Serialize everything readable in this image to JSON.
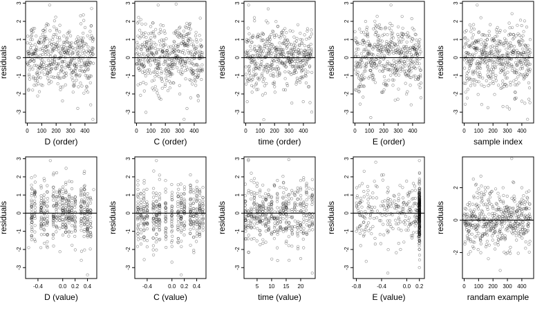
{
  "chart_data": [
    {
      "type": "scatter",
      "xlabel": "D (order)",
      "ylabel": "residuals",
      "xlim": [
        -12,
        482
      ],
      "ylim": [
        -3.6,
        3.1
      ],
      "xticks": [
        0,
        100,
        200,
        300,
        400
      ],
      "yticks": [
        -3,
        -2,
        -1,
        0,
        1,
        2,
        3
      ],
      "hline": 0,
      "x_kind": "index",
      "cluster_pattern": "segments",
      "series": [
        {
          "name": "",
          "n": 460,
          "x": [
            8,
            40,
            120,
            155,
            185,
            250,
            300,
            340,
            380,
            420,
            440,
            455
          ],
          "y": [
            -1.8,
            1.6,
            -0.6,
            2.9,
            1.7,
            -0.8,
            1.2,
            -1.0,
            0.9,
            -1.9,
            -2.6,
            -3.4
          ]
        }
      ]
    },
    {
      "type": "scatter",
      "xlabel": "C (order)",
      "ylabel": "residuals",
      "xlim": [
        -12,
        482
      ],
      "ylim": [
        -3.6,
        3.1
      ],
      "xticks": [
        0,
        100,
        200,
        300,
        400
      ],
      "yticks": [
        -3,
        -2,
        -1,
        0,
        1,
        2,
        3
      ],
      "hline": 0,
      "x_kind": "index",
      "cluster_pattern": "segments",
      "series": [
        {
          "name": "",
          "n": 460,
          "x": [
            10,
            30,
            100,
            150,
            200,
            260,
            300,
            330,
            350,
            410,
            450
          ],
          "y": [
            -1.5,
            2.1,
            1.1,
            2.9,
            -0.7,
            0.9,
            -2.0,
            -3.4,
            -2.8,
            1.2,
            0.6
          ],
          "wavy": true
        }
      ]
    },
    {
      "type": "scatter",
      "xlabel": "time (order)",
      "ylabel": "residuals",
      "xlim": [
        -12,
        482
      ],
      "ylim": [
        -3.6,
        3.1
      ],
      "xticks": [
        0,
        100,
        200,
        300,
        400
      ],
      "yticks": [
        -3,
        -2,
        -1,
        0,
        1,
        2,
        3
      ],
      "hline": 0,
      "x_kind": "index",
      "cluster_pattern": "uniform",
      "series": [
        {
          "name": "",
          "n": 460,
          "x": [
            20,
            60,
            120,
            200,
            260,
            320,
            380,
            440,
            458
          ],
          "y": [
            2.9,
            2.2,
            1.3,
            -1.6,
            1.5,
            -2.5,
            1.0,
            -1.6,
            -3.0
          ]
        }
      ]
    },
    {
      "type": "scatter",
      "xlabel": "E (order)",
      "ylabel": "residuals",
      "xlim": [
        -12,
        482
      ],
      "ylim": [
        -3.6,
        3.1
      ],
      "xticks": [
        0,
        100,
        200,
        300,
        400
      ],
      "yticks": [
        -3,
        -2,
        -1,
        0,
        1,
        2,
        3
      ],
      "hline": 0,
      "x_kind": "index",
      "cluster_pattern": "segments",
      "series": [
        {
          "name": "",
          "n": 460,
          "x": [
            10,
            60,
            110,
            160,
            210,
            250,
            300,
            350,
            390,
            420,
            450
          ],
          "y": [
            -1.8,
            1.4,
            -3.3,
            0.9,
            1.6,
            2.9,
            1.7,
            -0.9,
            -2.6,
            -1.2,
            1.0
          ]
        }
      ]
    },
    {
      "type": "scatter",
      "xlabel": "sample index",
      "ylabel": "residuals",
      "xlim": [
        -12,
        482
      ],
      "ylim": [
        -3.6,
        3.1
      ],
      "xticks": [
        0,
        100,
        200,
        300,
        400
      ],
      "yticks": [
        -3,
        -2,
        -1,
        0,
        1,
        2,
        3
      ],
      "hline": 0,
      "x_kind": "index",
      "cluster_pattern": "segments",
      "series": [
        {
          "name": "",
          "n": 460,
          "x": [
            10,
            40,
            90,
            120,
            160,
            200,
            250,
            300,
            360,
            400,
            440,
            458
          ],
          "y": [
            -1.9,
            1.8,
            2.9,
            -1.5,
            1.0,
            -0.8,
            1.5,
            0.8,
            1.2,
            -2.4,
            -3.4,
            1.0
          ]
        }
      ]
    },
    {
      "type": "scatter",
      "xlabel": "D (value)",
      "ylabel": "residuals",
      "xlim": [
        -0.6,
        0.55
      ],
      "ylim": [
        -3.6,
        3.1
      ],
      "xticks": [
        -0.4,
        0.0,
        0.2,
        0.4
      ],
      "xtick_labels": [
        "-0.4",
        "0.0",
        "0.2",
        "0.4"
      ],
      "yticks": [
        -3,
        -2,
        -1,
        0,
        1,
        2,
        3
      ],
      "hline": 0,
      "x_kind": "value",
      "cluster_pattern": "stripes",
      "stripe_x": [
        -0.5,
        -0.45,
        -0.35,
        -0.3,
        -0.25,
        -0.15,
        -0.1,
        -0.05,
        0.0,
        0.05,
        0.1,
        0.15,
        0.2,
        0.3,
        0.35,
        0.4,
        0.45
      ],
      "series": [
        {
          "name": "",
          "n": 460,
          "x": [
            -0.55,
            -0.35,
            -0.2,
            0.05,
            0.1,
            0.3,
            0.4,
            0.5
          ],
          "y": [
            -1.9,
            1.5,
            2.9,
            1.7,
            -1.0,
            -2.6,
            -3.4,
            1.3
          ]
        }
      ]
    },
    {
      "type": "scatter",
      "xlabel": "C (value)",
      "ylabel": "residuals",
      "xlim": [
        -0.6,
        0.55
      ],
      "ylim": [
        -3.6,
        3.1
      ],
      "xticks": [
        -0.4,
        0.0,
        0.2,
        0.4
      ],
      "xtick_labels": [
        "-0.4",
        "0.0",
        "0.2",
        "0.4"
      ],
      "yticks": [
        -3,
        -2,
        -1,
        0,
        1,
        2,
        3
      ],
      "hline": 0,
      "x_kind": "value",
      "cluster_pattern": "stripes",
      "stripe_x": [
        -0.55,
        -0.5,
        -0.45,
        -0.4,
        -0.3,
        -0.25,
        -0.2,
        -0.1,
        0.0,
        0.1,
        0.15,
        0.2,
        0.3,
        0.35,
        0.4,
        0.45,
        0.5
      ],
      "series": [
        {
          "name": "",
          "n": 460,
          "x": [
            -0.5,
            -0.25,
            -0.2,
            0.0,
            0.15,
            0.3,
            0.45
          ],
          "y": [
            -1.7,
            2.9,
            2.1,
            -2.7,
            -3.4,
            1.2,
            0.7
          ]
        }
      ]
    },
    {
      "type": "scatter",
      "xlabel": "time (value)",
      "ylabel": "residuals",
      "xlim": [
        0.5,
        25
      ],
      "ylim": [
        -3.6,
        3.1
      ],
      "xticks": [
        5,
        10,
        15,
        20
      ],
      "xtick_labels": [
        "5",
        "10",
        "15",
        "20"
      ],
      "yticks": [
        -3,
        -2,
        -1,
        0,
        1,
        2,
        3
      ],
      "hline": 0,
      "x_kind": "value",
      "cluster_pattern": "stripes",
      "stripe_x": [
        1,
        2,
        3,
        4,
        5,
        6,
        7,
        8,
        9,
        10,
        11,
        12,
        13,
        14,
        15,
        16,
        17,
        18,
        19,
        20,
        21,
        22,
        23,
        24
      ],
      "series": [
        {
          "name": "",
          "n": 460,
          "x": [
            2,
            3,
            8,
            12,
            16,
            20,
            24
          ],
          "y": [
            2.9,
            2.2,
            -1.6,
            1.8,
            -2.6,
            -2.5,
            -3.3
          ]
        }
      ]
    },
    {
      "type": "scatter",
      "xlabel": "E (value)",
      "ylabel": "residuals",
      "xlim": [
        -0.85,
        0.28
      ],
      "ylim": [
        -3.6,
        3.1
      ],
      "xticks": [
        -0.8,
        -0.4,
        0.0,
        0.2
      ],
      "xtick_labels": [
        "-0.8",
        "-0.4",
        "0.0",
        "0.2"
      ],
      "yticks": [
        -3,
        -2,
        -1,
        0,
        1,
        2,
        3
      ],
      "hline": 0,
      "x_kind": "value",
      "cluster_pattern": "dense-right",
      "dense_x": 0.2,
      "series": [
        {
          "name": "",
          "n": 460,
          "x": [
            -0.8,
            -0.75,
            -0.5,
            -0.3,
            -0.1,
            0.2,
            0.2
          ],
          "y": [
            -1.0,
            1.5,
            -1.7,
            -3.3,
            -2.0,
            2.9,
            -3.0
          ]
        }
      ]
    },
    {
      "type": "scatter",
      "xlabel": "randam example",
      "ylabel": "residuals",
      "xlim": [
        -12,
        482
      ],
      "ylim": [
        -3.6,
        3.9
      ],
      "xticks": [
        0,
        100,
        200,
        300,
        400
      ],
      "yticks": [
        -2,
        0,
        2
      ],
      "hline": 0,
      "x_kind": "index",
      "cluster_pattern": "uniform",
      "series": [
        {
          "name": "",
          "n": 460,
          "x": [
            30,
            120,
            250,
            330,
            400,
            450
          ],
          "y": [
            -2.1,
            2.1,
            -3.1,
            3.8,
            2.0,
            -1.5
          ]
        }
      ]
    }
  ]
}
